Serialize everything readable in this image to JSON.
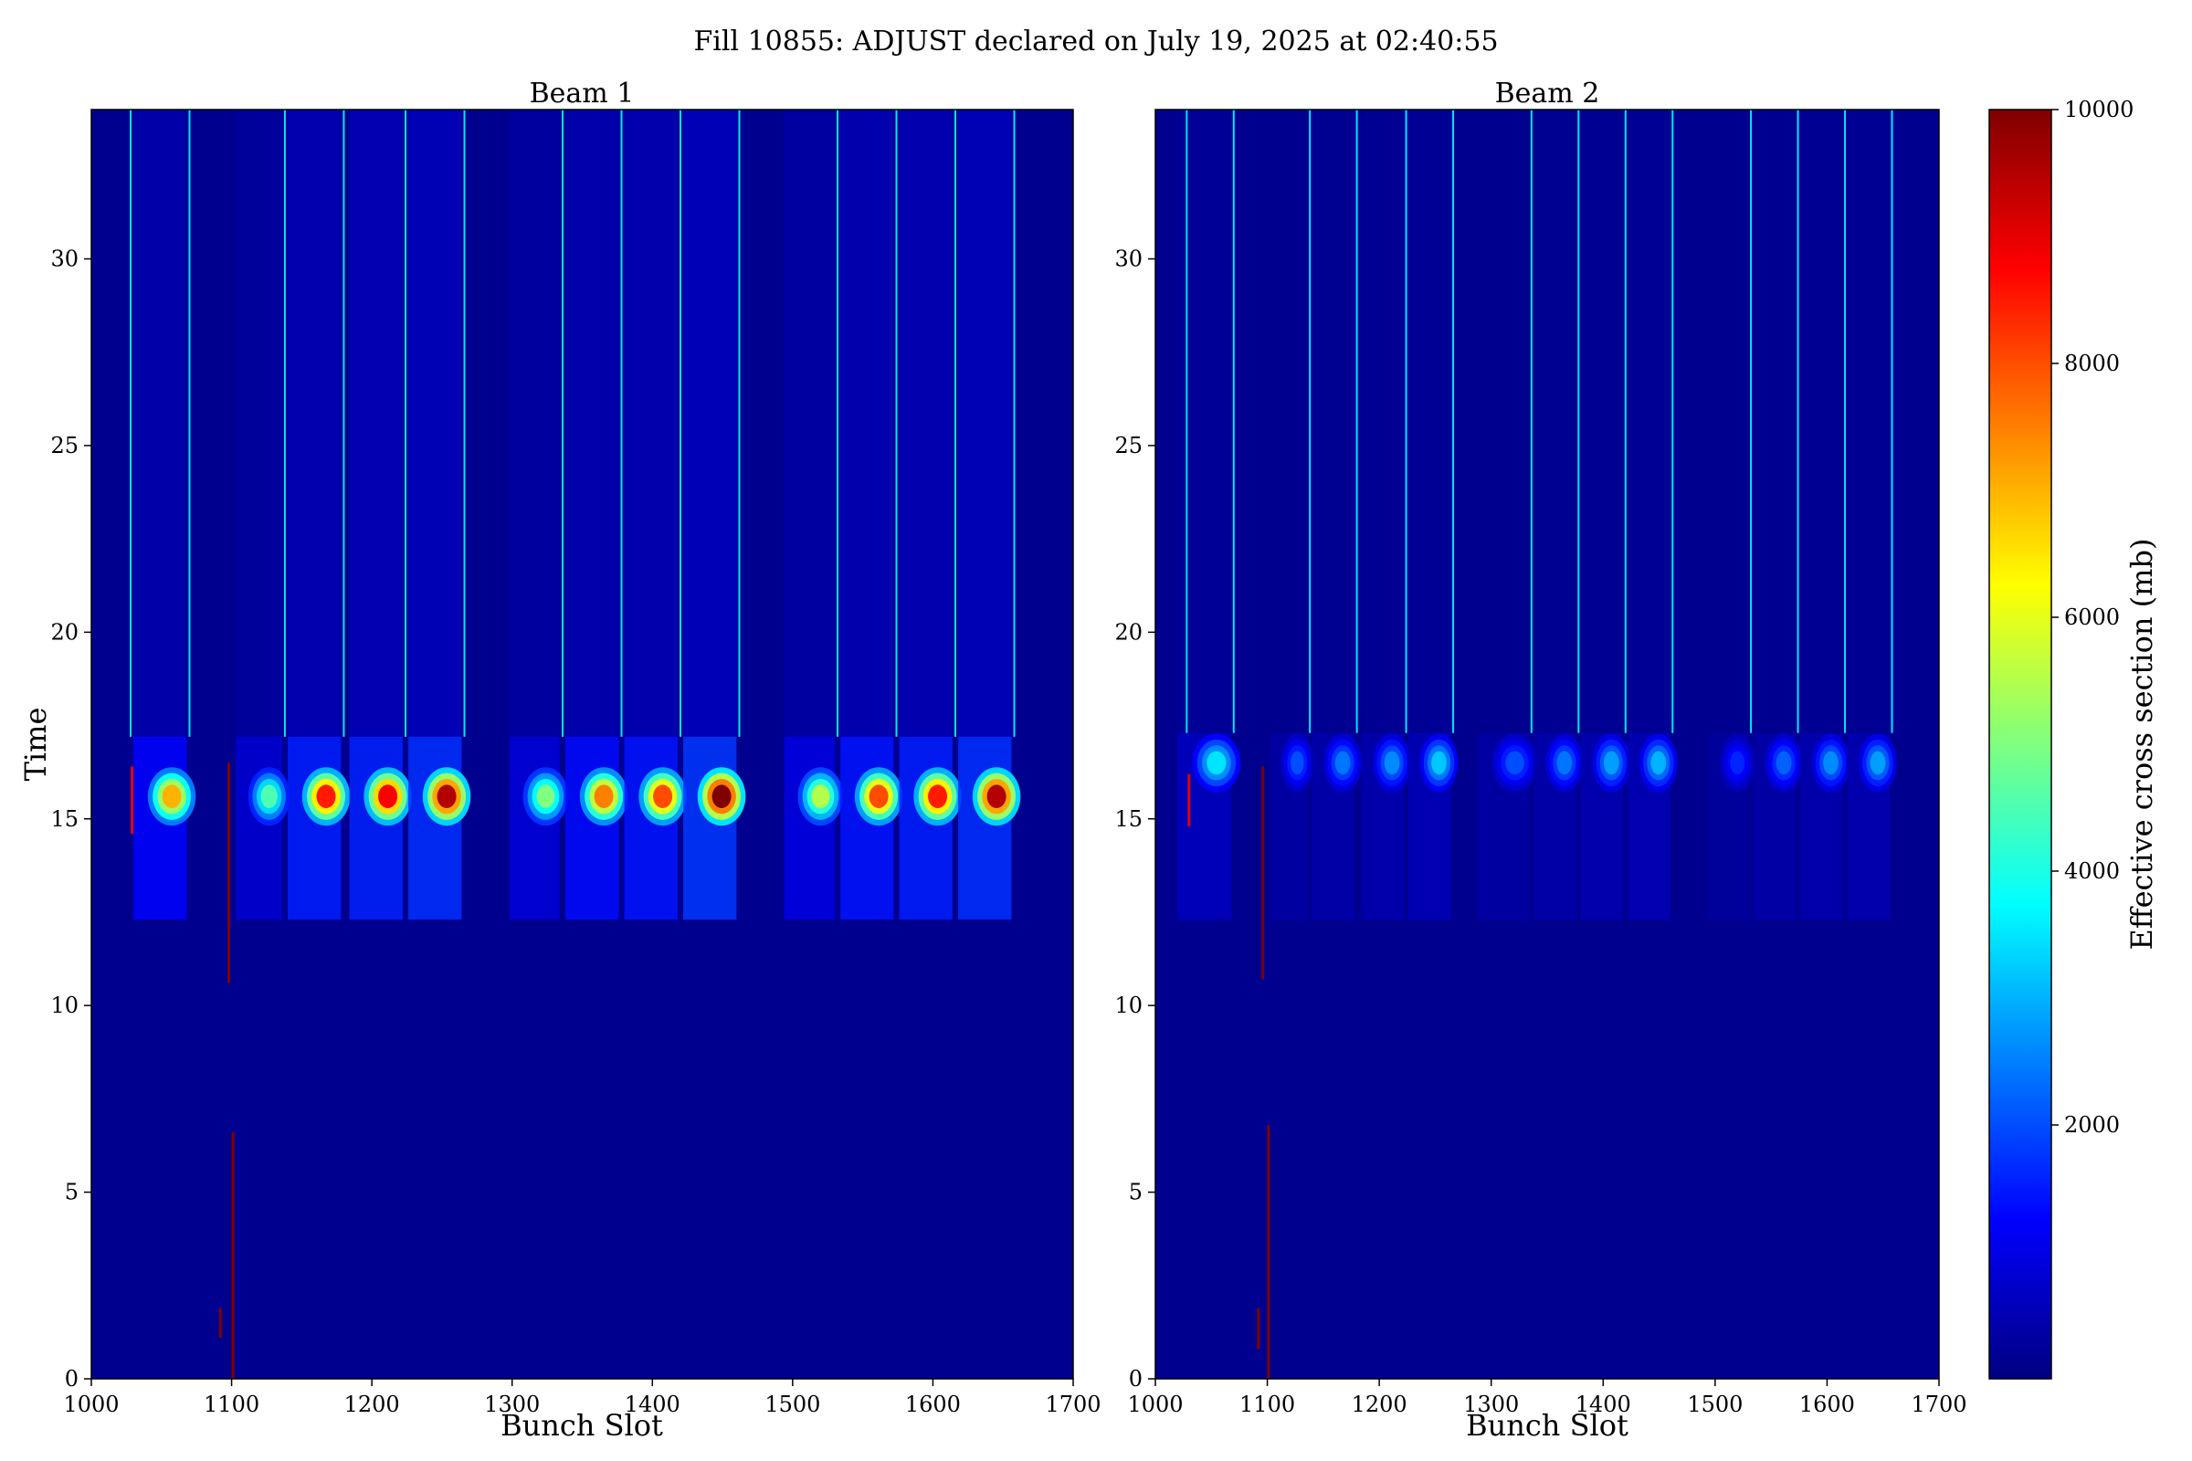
{
  "figure": {
    "title": "Fill 10855: ADJUST declared on July 19, 2025 at 02:40:55"
  },
  "colors": {
    "background_low": "#00008f",
    "colormap": [
      "#000080",
      "#0000ff",
      "#0080ff",
      "#00ffff",
      "#80ff80",
      "#ffff00",
      "#ff8000",
      "#ff0000",
      "#800000"
    ]
  },
  "chart_data": [
    {
      "type": "heatmap",
      "title": "Beam 1",
      "xlabel": "Bunch Slot",
      "ylabel": "Time",
      "xlim": [
        1000,
        1700
      ],
      "ylim": [
        0,
        34
      ],
      "xticks": [
        1000,
        1100,
        1200,
        1300,
        1400,
        1500,
        1600,
        1700
      ],
      "yticks": [
        0,
        5,
        10,
        15,
        20,
        25,
        30
      ],
      "bunch_trains": [
        {
          "start": 1030,
          "end": 1068,
          "peak_time": 15.6,
          "peak_value": 7000
        },
        {
          "start": 1103,
          "end": 1136,
          "peak_time": 15.6,
          "peak_value": 4500
        },
        {
          "start": 1140,
          "end": 1178,
          "peak_time": 15.6,
          "peak_value": 8500
        },
        {
          "start": 1184,
          "end": 1222,
          "peak_time": 15.6,
          "peak_value": 8800
        },
        {
          "start": 1226,
          "end": 1264,
          "peak_time": 15.6,
          "peak_value": 9500
        },
        {
          "start": 1298,
          "end": 1334,
          "peak_time": 15.6,
          "peak_value": 5000
        },
        {
          "start": 1338,
          "end": 1376,
          "peak_time": 15.6,
          "peak_value": 7500
        },
        {
          "start": 1380,
          "end": 1418,
          "peak_time": 15.6,
          "peak_value": 8000
        },
        {
          "start": 1422,
          "end": 1460,
          "peak_time": 15.6,
          "peak_value": 10000
        },
        {
          "start": 1494,
          "end": 1530,
          "peak_time": 15.6,
          "peak_value": 5500
        },
        {
          "start": 1534,
          "end": 1572,
          "peak_time": 15.6,
          "peak_value": 8000
        },
        {
          "start": 1576,
          "end": 1614,
          "peak_time": 15.6,
          "peak_value": 8500
        },
        {
          "start": 1618,
          "end": 1656,
          "peak_time": 15.6,
          "peak_value": 9500
        }
      ],
      "activity_start_time": 12.3,
      "plateau_end_time": 17.2,
      "vertical_streaks": [
        1028,
        1070,
        1138,
        1180,
        1224,
        1266,
        1336,
        1378,
        1420,
        1462,
        1532,
        1574,
        1616,
        1658
      ],
      "isolated_bunches": [
        {
          "slot": 1098,
          "t_from": 10.6,
          "t_to": 16.5,
          "value": 10000
        },
        {
          "slot": 1101,
          "t_from": 0.0,
          "t_to": 6.6,
          "value": 10000
        },
        {
          "slot": 1092,
          "t_from": 1.1,
          "t_to": 1.9,
          "value": 10000
        },
        {
          "slot": 1029,
          "t_from": 14.6,
          "t_to": 16.4,
          "value": 9000
        }
      ]
    },
    {
      "type": "heatmap",
      "title": "Beam 2",
      "xlabel": "Bunch Slot",
      "ylabel": "",
      "xlim": [
        1000,
        1700
      ],
      "ylim": [
        0,
        34
      ],
      "xticks": [
        1000,
        1100,
        1200,
        1300,
        1400,
        1500,
        1600,
        1700
      ],
      "yticks": [
        0,
        5,
        10,
        15,
        20,
        25,
        30
      ],
      "bunch_trains": [
        {
          "start": 1020,
          "end": 1068,
          "peak_time": 16.5,
          "peak_value": 3500
        },
        {
          "start": 1103,
          "end": 1136,
          "peak_time": 16.5,
          "peak_value": 2000
        },
        {
          "start": 1140,
          "end": 1178,
          "peak_time": 16.5,
          "peak_value": 2400
        },
        {
          "start": 1184,
          "end": 1222,
          "peak_time": 16.5,
          "peak_value": 2600
        },
        {
          "start": 1226,
          "end": 1264,
          "peak_time": 16.5,
          "peak_value": 3200
        },
        {
          "start": 1288,
          "end": 1334,
          "peak_time": 16.5,
          "peak_value": 2000
        },
        {
          "start": 1338,
          "end": 1376,
          "peak_time": 16.5,
          "peak_value": 2400
        },
        {
          "start": 1380,
          "end": 1418,
          "peak_time": 16.5,
          "peak_value": 2800
        },
        {
          "start": 1422,
          "end": 1460,
          "peak_time": 16.5,
          "peak_value": 3000
        },
        {
          "start": 1494,
          "end": 1530,
          "peak_time": 16.5,
          "peak_value": 1600
        },
        {
          "start": 1534,
          "end": 1572,
          "peak_time": 16.5,
          "peak_value": 2200
        },
        {
          "start": 1576,
          "end": 1614,
          "peak_time": 16.5,
          "peak_value": 2600
        },
        {
          "start": 1618,
          "end": 1656,
          "peak_time": 16.5,
          "peak_value": 2800
        }
      ],
      "activity_start_time": 12.3,
      "plateau_end_time": 17.3,
      "vertical_streaks": [
        1028,
        1070,
        1138,
        1180,
        1224,
        1266,
        1336,
        1378,
        1420,
        1462,
        1532,
        1574,
        1616,
        1658
      ],
      "isolated_bunches": [
        {
          "slot": 1096,
          "t_from": 10.7,
          "t_to": 16.4,
          "value": 10000
        },
        {
          "slot": 1101,
          "t_from": 0.0,
          "t_to": 6.8,
          "value": 10000
        },
        {
          "slot": 1092,
          "t_from": 0.8,
          "t_to": 1.9,
          "value": 10000
        },
        {
          "slot": 1030,
          "t_from": 14.8,
          "t_to": 16.2,
          "value": 9000
        }
      ]
    }
  ],
  "colorbar": {
    "label": "Effective cross section (mb)",
    "min": 0,
    "max": 10000,
    "ticks": [
      2000,
      4000,
      6000,
      8000,
      10000
    ]
  }
}
